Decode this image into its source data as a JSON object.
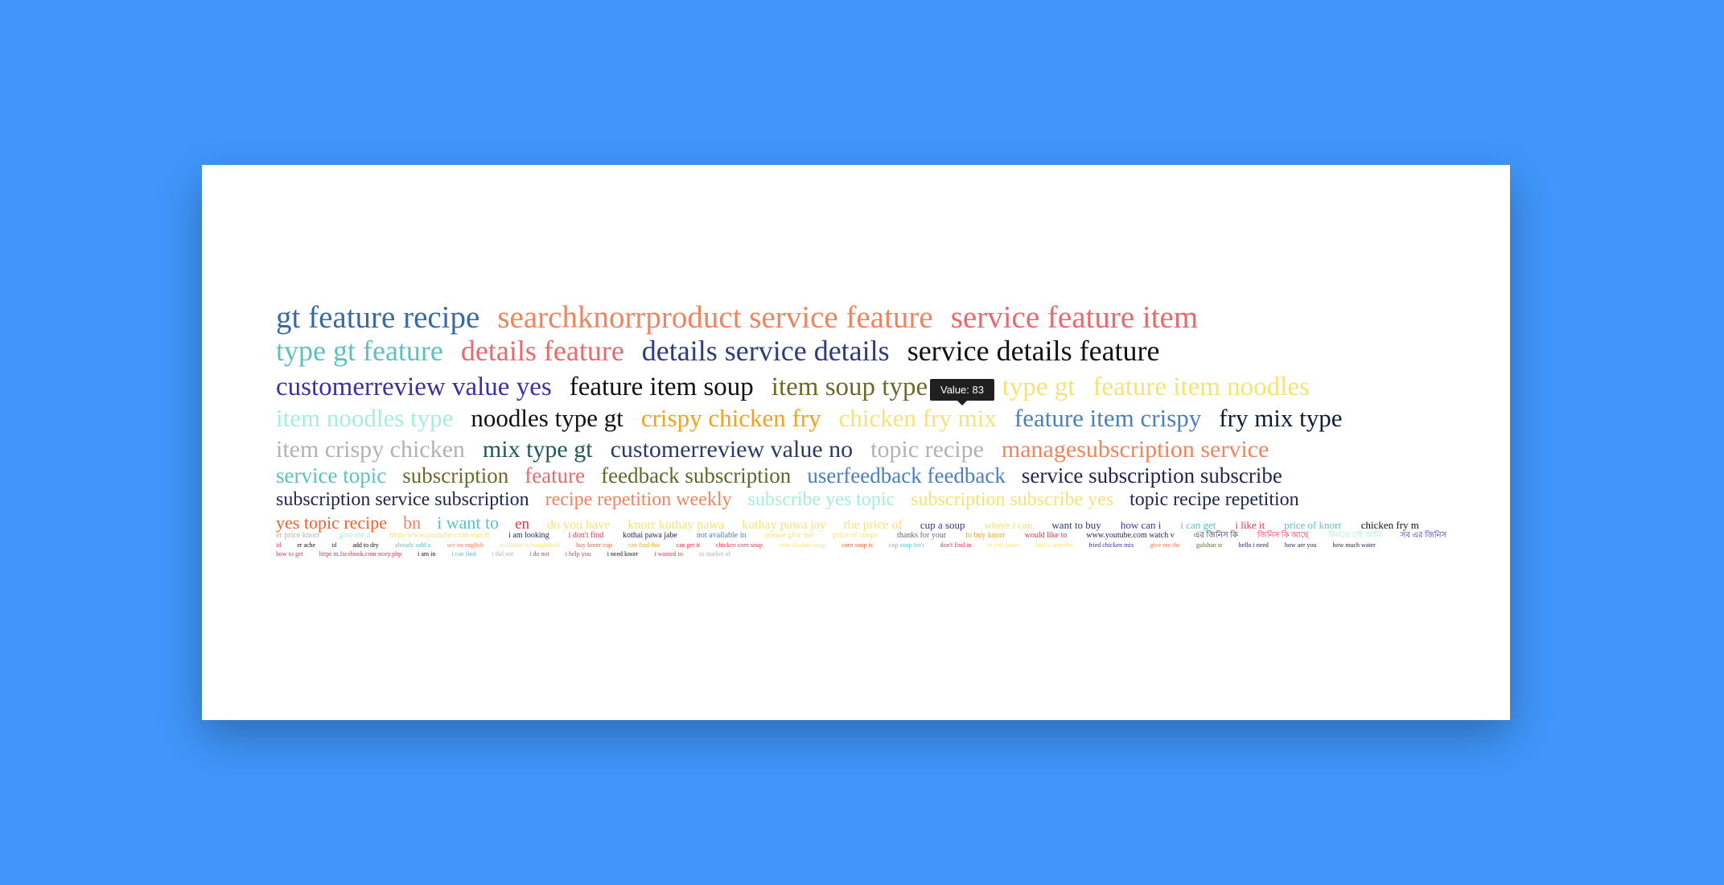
{
  "tooltip": "Value: 83",
  "rows": [
    {
      "size": 39,
      "gap": 22,
      "mb": 4,
      "words": [
        {
          "text": "gt feature recipe",
          "color": "#3b6aa0"
        },
        {
          "text": "searchknorrproduct service feature",
          "color": "#f0845e"
        },
        {
          "text": "service feature item",
          "color": "#e86a6e"
        }
      ]
    },
    {
      "size": 36,
      "gap": 22,
      "mb": 11,
      "words": [
        {
          "text": "type gt feature",
          "color": "#5cc2c0"
        },
        {
          "text": "details feature",
          "color": "#e86a6e"
        },
        {
          "text": "details service details",
          "color": "#2f3a7a"
        },
        {
          "text": "service details feature",
          "color": "#111111"
        }
      ]
    },
    {
      "size": 33,
      "gap": 22,
      "mb": 6,
      "words": [
        {
          "text": "customerreview value yes",
          "color": "#3d2fa6"
        },
        {
          "text": "feature item soup",
          "color": "#111111"
        },
        {
          "text": "item soup type",
          "color": "#6a6a2a"
        },
        {
          "text": "soup type gt",
          "color": "#f6e27a"
        },
        {
          "text": "feature item noodles",
          "color": "#f6e27a"
        }
      ]
    },
    {
      "size": 31,
      "gap": 22,
      "mb": 9,
      "words": [
        {
          "text": "item noodles type",
          "color": "#a6efd6"
        },
        {
          "text": "noodles type gt",
          "color": "#111111"
        },
        {
          "text": "crispy chicken fry",
          "color": "#f4a11c"
        },
        {
          "text": "chicken fry mix",
          "color": "#f6e27a"
        },
        {
          "text": "feature item crispy",
          "color": "#4c7fc0"
        },
        {
          "text": "fry mix type",
          "color": "#111a3a"
        }
      ]
    },
    {
      "size": 30,
      "gap": 22,
      "mb": 4,
      "words": [
        {
          "text": "item crispy chicken",
          "color": "#b2b2b2"
        },
        {
          "text": "mix type gt",
          "color": "#1d5a5a"
        },
        {
          "text": "customerreview value no",
          "color": "#2c3a6a"
        },
        {
          "text": "topic recipe",
          "color": "#b2b2b2"
        },
        {
          "text": "managesubscription service",
          "color": "#f0845e"
        }
      ]
    },
    {
      "size": 27,
      "gap": 20,
      "mb": 4,
      "words": [
        {
          "text": "service topic",
          "color": "#5cc2c0"
        },
        {
          "text": "subscription",
          "color": "#6a6a2a"
        },
        {
          "text": "feature",
          "color": "#e86a6e"
        },
        {
          "text": "feedback subscription",
          "color": "#5a6a2a"
        },
        {
          "text": "userfeedback feedback",
          "color": "#4c7fc0"
        },
        {
          "text": "service subscription subscribe",
          "color": "#1f2650"
        }
      ]
    },
    {
      "size": 24,
      "gap": 20,
      "mb": 6,
      "words": [
        {
          "text": "subscription service subscription",
          "color": "#1f2650"
        },
        {
          "text": "recipe repetition weekly",
          "color": "#f0845e"
        },
        {
          "text": "subscribe yes topic",
          "color": "#a6efd6"
        },
        {
          "text": "subscription subscribe yes",
          "color": "#f6e27a"
        },
        {
          "text": "topic recipe repetition",
          "color": "#1f2650"
        }
      ]
    },
    {
      "size": 22,
      "gap": 20,
      "mb": 0,
      "words": [
        {
          "text": "yes topic recipe",
          "color": "#f0602e"
        },
        {
          "text": "bn",
          "color": "#f0845e"
        },
        {
          "text": "i want to",
          "color": "#5cc2c0"
        }
      ],
      "tail_size": 19,
      "tail_gap": 22,
      "tail": [
        {
          "text": "en",
          "color": "#e8324a"
        }
      ],
      "tail2_size": 16,
      "tail2_gap": 22,
      "tail2": [
        {
          "text": "do you have",
          "color": "#f6e27a"
        },
        {
          "text": "knorr kothay pawa",
          "color": "#f6e27a"
        },
        {
          "text": "kothay pawa jay",
          "color": "#f6e27a"
        },
        {
          "text": "the price of",
          "color": "#f6e27a"
        }
      ],
      "tail3_size": 13,
      "tail3_gap": 24,
      "tail3": [
        {
          "text": "cup a soup",
          "color": "#3d2fa6"
        },
        {
          "text": "where i can",
          "color": "#f6e27a"
        },
        {
          "text": "want to buy",
          "color": "#2c3a6a"
        },
        {
          "text": "how can i",
          "color": "#3d2fa6"
        },
        {
          "text": "i can get",
          "color": "#5cc2c0"
        },
        {
          "text": "i like it",
          "color": "#e8324a"
        },
        {
          "text": "price of knorr",
          "color": "#5cc2c0"
        },
        {
          "text": "chicken fry m",
          "color": "#111111"
        }
      ]
    },
    {
      "size": 10,
      "gap": 24,
      "mb": 3,
      "words": [
        {
          "text": "er price knorr",
          "color": "#b2b2b2"
        },
        {
          "text": "give me a",
          "color": "#a6efd6"
        },
        {
          "text": "https www.youtube.com watch",
          "color": "#f6e27a"
        },
        {
          "text": "i am looking",
          "color": "#1f2650"
        },
        {
          "text": "i don't find",
          "color": "#e8324a"
        },
        {
          "text": "kothai pawa jabe",
          "color": "#1f2650"
        },
        {
          "text": "not available in",
          "color": "#4c7fc0"
        },
        {
          "text": "please give me",
          "color": "#f6e27a"
        },
        {
          "text": "price of soups",
          "color": "#f6e27a"
        },
        {
          "text": "thanks for your",
          "color": "#6a6a6a"
        },
        {
          "text": "to buy knorr",
          "color": "#f4a11c"
        },
        {
          "text": "would like to",
          "color": "#e8324a"
        },
        {
          "text": "www.youtube.com watch v",
          "color": "#1f2650"
        },
        {
          "text": "এর জিনিস কি",
          "color": "#1f2650"
        },
        {
          "text": "জিনিস কি আছে",
          "color": "#e8324a"
        },
        {
          "text": "কিনতে চাই আমি",
          "color": "#a6efd6"
        },
        {
          "text": "সব এর জিনিস",
          "color": "#3d2fa6"
        }
      ]
    },
    {
      "size": 8,
      "gap": 20,
      "mb": 3,
      "words": [
        {
          "text": "id",
          "color": "#e8324a"
        },
        {
          "text": "er ache",
          "color": "#111111"
        },
        {
          "text": "id",
          "color": "#1f2650"
        },
        {
          "text": "add to dry",
          "color": "#111111"
        },
        {
          "text": "already sold o",
          "color": "#5cc2c0"
        },
        {
          "text": "see on english",
          "color": "#f0845e"
        },
        {
          "text": "available in bangladesh",
          "color": "#f6e27a"
        },
        {
          "text": "buy knorr cup",
          "color": "#f0602e"
        },
        {
          "text": "can find this",
          "color": "#f4a11c"
        },
        {
          "text": "can get it",
          "color": "#e8324a"
        },
        {
          "text": "chicken corn soup",
          "color": "#e8324a"
        },
        {
          "text": "corn chicken soup",
          "color": "#f6e27a"
        },
        {
          "text": "corn soup is",
          "color": "#f0602e"
        },
        {
          "text": "cup soup isn't",
          "color": "#5cc2c0"
        },
        {
          "text": "don't find in",
          "color": "#e8324a"
        },
        {
          "text": "er jodi pawa",
          "color": "#f6e27a"
        },
        {
          "text": "find it anywhe",
          "color": "#f6e27a"
        },
        {
          "text": "fried chicken mix",
          "color": "#3d2fa6"
        },
        {
          "text": "give me the",
          "color": "#f0845e"
        },
        {
          "text": "gulshan sr",
          "color": "#6a6a2a"
        },
        {
          "text": "hello i need",
          "color": "#1f2650"
        },
        {
          "text": "how are you",
          "color": "#1f2650"
        },
        {
          "text": "how much water",
          "color": "#1f2650"
        }
      ]
    },
    {
      "size": 8,
      "gap": 20,
      "mb": 0,
      "words": [
        {
          "text": "how to get",
          "color": "#e8324a"
        },
        {
          "text": "https m.facebook.com story.php",
          "color": "#e8324a"
        },
        {
          "text": "i am in",
          "color": "#111111"
        },
        {
          "text": "i can find",
          "color": "#5cc2c0"
        },
        {
          "text": "i did not",
          "color": "#b2b2b2"
        },
        {
          "text": "i do not",
          "color": "#e8324a"
        },
        {
          "text": "i help you",
          "color": "#e8324a"
        },
        {
          "text": "i need knorr",
          "color": "#111111"
        },
        {
          "text": "i wanted to",
          "color": "#e8324a"
        },
        {
          "text": "in market of",
          "color": "#b2b2b2"
        }
      ]
    }
  ]
}
